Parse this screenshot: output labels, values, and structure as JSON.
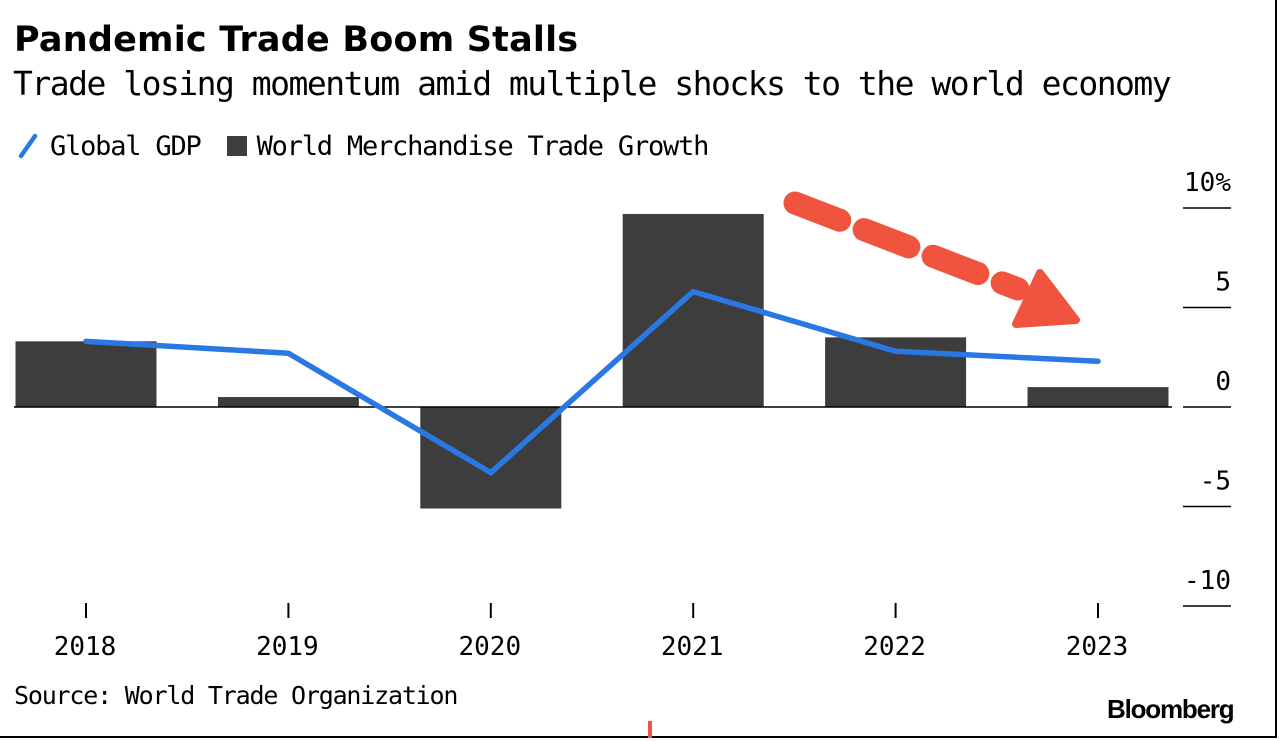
{
  "header": {
    "title": "Pandemic Trade Boom Stalls",
    "subtitle": "Trade losing momentum amid multiple shocks to the world economy"
  },
  "legend": {
    "line_label": "Global GDP",
    "bar_label": "World Merchandise Trade Growth"
  },
  "footer": {
    "source": "Source: World Trade Organization",
    "brand": "Bloomberg"
  },
  "colors": {
    "line": "#2a78e4",
    "bar": "#3d3d3d",
    "arrow": "#f0533e",
    "text": "#000000",
    "axis": "#000000"
  },
  "chart_data": {
    "type": "bar",
    "title": "Pandemic Trade Boom Stalls",
    "subtitle": "Trade losing momentum amid multiple shocks to the world economy",
    "categories": [
      "2018",
      "2019",
      "2020",
      "2021",
      "2022",
      "2023"
    ],
    "series": [
      {
        "name": "World Merchandise Trade Growth",
        "type": "bar",
        "values": [
          3.3,
          0.5,
          -5.1,
          9.7,
          3.5,
          1.0
        ]
      },
      {
        "name": "Global GDP",
        "type": "line",
        "values": [
          3.3,
          2.7,
          -3.3,
          5.8,
          2.8,
          2.3
        ]
      }
    ],
    "y_axis": {
      "side": "right",
      "ylim": [
        -10,
        10
      ],
      "ticks": [
        10,
        5,
        0,
        -5,
        -10
      ],
      "tick_labels": [
        "10%",
        "5",
        "0",
        "-5",
        "-10"
      ]
    },
    "legend_position": "top-left",
    "annotation": "dashed red downward arrow from 2021 toward 2023",
    "xlabel": "",
    "ylabel": ""
  }
}
